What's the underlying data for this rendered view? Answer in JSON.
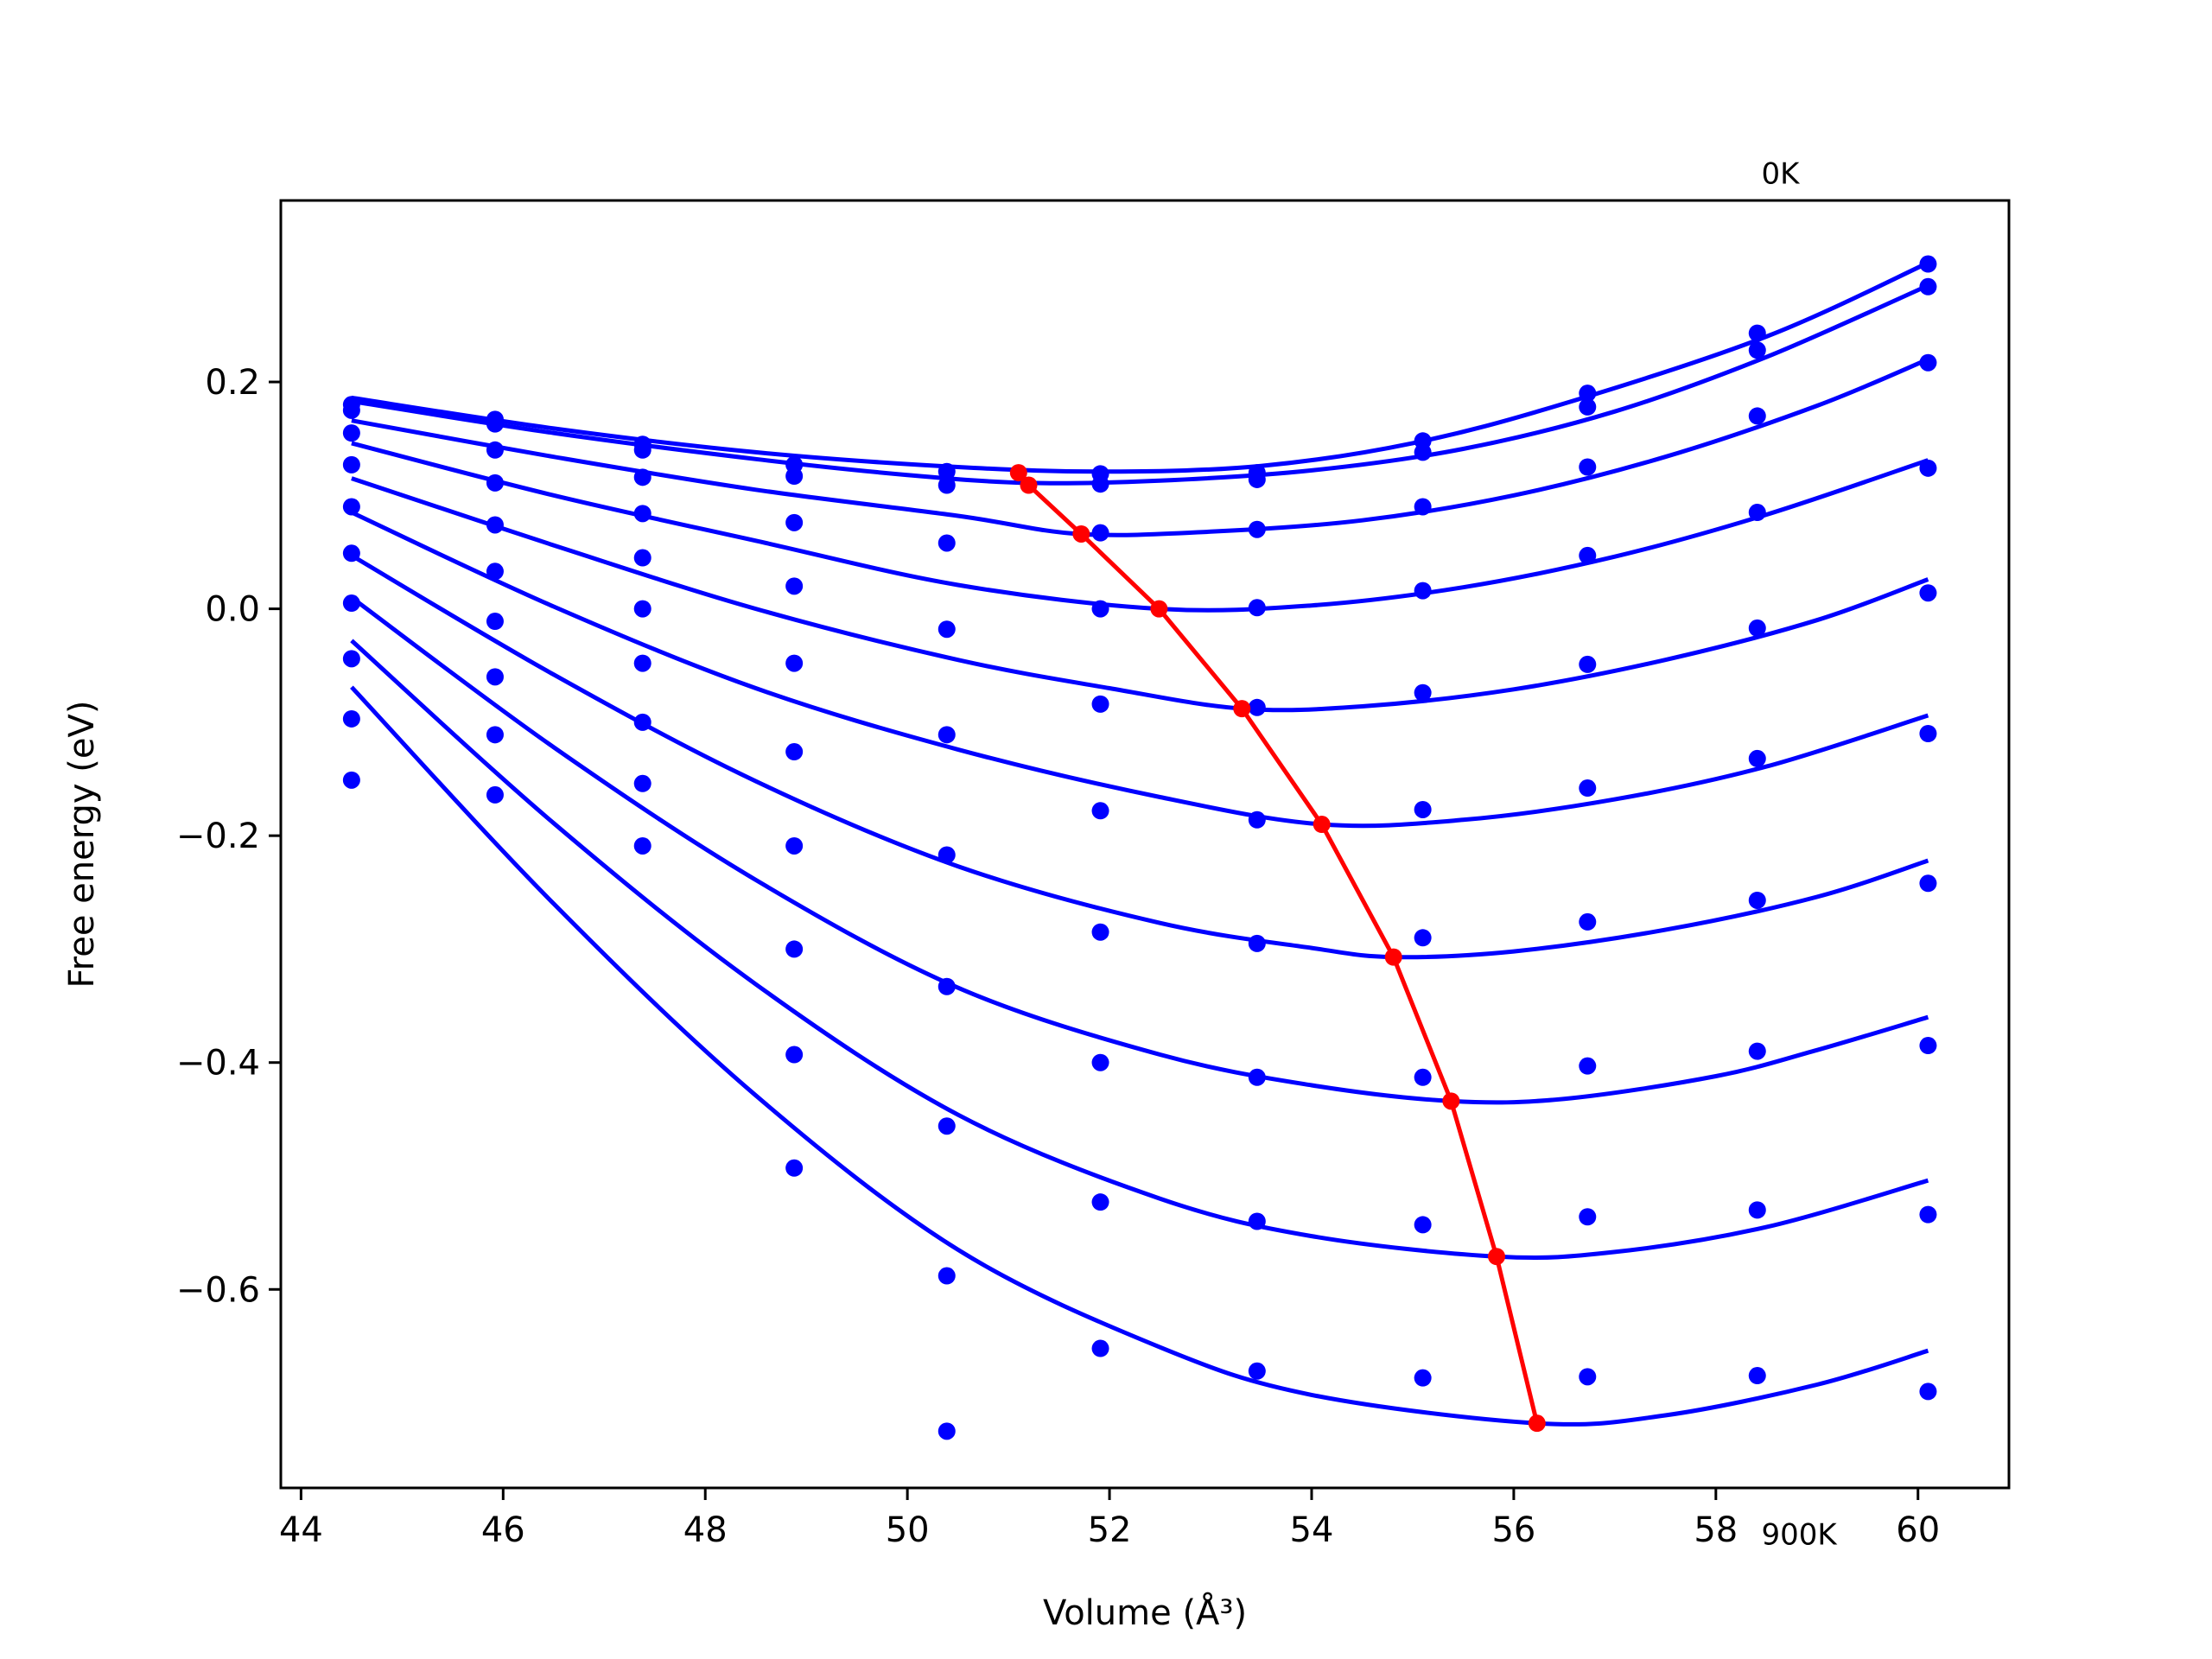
{
  "chart_data": {
    "type": "scatter",
    "xlabel": "Volume (Å³)",
    "ylabel": "Free energy (eV)",
    "xlim": [
      43.8,
      60.9
    ],
    "ylim": [
      -0.775,
      0.36
    ],
    "xticks": [
      44,
      46,
      48,
      50,
      52,
      54,
      56,
      58,
      60
    ],
    "yticks": [
      -0.6,
      -0.4,
      -0.2,
      0.0,
      0.2
    ],
    "xtick_labels": [
      "44",
      "46",
      "48",
      "50",
      "52",
      "54",
      "56",
      "58",
      "60"
    ],
    "ytick_labels": [
      "−0.6",
      "−0.4",
      "−0.2",
      "0.0",
      "0.2"
    ],
    "annotations": [
      {
        "text": "0K",
        "x": 58.45,
        "y": 0.375
      },
      {
        "text": "900K",
        "x": 58.45,
        "y": -0.825
      }
    ],
    "colors": {
      "points": "#0000ff",
      "fits": "#0000ff",
      "minima": "#ff0000"
    },
    "volumes": [
      44.5,
      45.92,
      47.38,
      48.88,
      50.39,
      51.91,
      53.46,
      55.1,
      56.73,
      58.41,
      60.1
    ],
    "series": [
      {
        "points": [
          0.18,
          0.167,
          0.145,
          0.127,
          0.121,
          0.119,
          0.12,
          0.148,
          0.19,
          0.243,
          0.304
        ],
        "fit": [
          [
            44.5,
            0.186
          ],
          [
            46.5,
            0.159
          ],
          [
            48.5,
            0.138
          ],
          [
            50.5,
            0.125
          ],
          [
            52.0,
            0.121
          ],
          [
            53.5,
            0.126
          ],
          [
            55.0,
            0.146
          ],
          [
            56.5,
            0.181
          ],
          [
            58.5,
            0.24
          ],
          [
            60.1,
            0.305
          ]
        ]
      },
      {
        "points": [
          0.175,
          0.163,
          0.14,
          0.117,
          0.109,
          0.11,
          0.114,
          0.138,
          0.178,
          0.228,
          0.284
        ],
        "fit": [
          [
            44.5,
            0.183
          ],
          [
            46.5,
            0.155
          ],
          [
            48.5,
            0.132
          ],
          [
            50.0,
            0.118
          ],
          [
            51.2,
            0.111
          ],
          [
            52.5,
            0.113
          ],
          [
            54.0,
            0.122
          ],
          [
            55.5,
            0.141
          ],
          [
            57.0,
            0.174
          ],
          [
            58.5,
            0.222
          ],
          [
            60.1,
            0.285
          ]
        ]
      },
      {
        "points": [
          0.155,
          0.14,
          0.116,
          0.076,
          0.058,
          0.067,
          0.07,
          0.09,
          0.125,
          0.17,
          0.217
        ],
        "fit": [
          [
            44.5,
            0.166
          ],
          [
            46.5,
            0.134
          ],
          [
            48.5,
            0.105
          ],
          [
            50.5,
            0.082
          ],
          [
            51.7,
            0.066
          ],
          [
            53.0,
            0.068
          ],
          [
            54.5,
            0.078
          ],
          [
            56.0,
            0.1
          ],
          [
            57.5,
            0.134
          ],
          [
            59.0,
            0.179
          ],
          [
            60.1,
            0.22
          ]
        ]
      },
      {
        "points": [
          0.127,
          0.111,
          0.084,
          0.02,
          -0.018,
          0.0,
          0.001,
          0.016,
          0.047,
          0.085,
          0.124
        ],
        "fit": [
          [
            44.5,
            0.146
          ],
          [
            46.5,
            0.1
          ],
          [
            48.5,
            0.06
          ],
          [
            50.5,
            0.021
          ],
          [
            52.49,
            0.0
          ],
          [
            54.0,
            0.003
          ],
          [
            55.5,
            0.019
          ],
          [
            57.0,
            0.046
          ],
          [
            58.5,
            0.083
          ],
          [
            60.1,
            0.131
          ]
        ]
      },
      {
        "points": [
          0.09,
          0.074,
          0.045,
          -0.048,
          -0.111,
          -0.084,
          -0.087,
          -0.074,
          -0.049,
          -0.017,
          0.014
        ],
        "fit": [
          [
            44.5,
            0.115
          ],
          [
            46.5,
            0.056
          ],
          [
            48.5,
            0.0
          ],
          [
            50.5,
            -0.045
          ],
          [
            52.0,
            -0.07
          ],
          [
            53.31,
            -0.088
          ],
          [
            54.5,
            -0.086
          ],
          [
            56.0,
            -0.071
          ],
          [
            57.5,
            -0.045
          ],
          [
            59.0,
            -0.01
          ],
          [
            60.1,
            0.026
          ]
        ]
      },
      {
        "points": [
          0.049,
          0.033,
          0.0,
          -0.126,
          -0.217,
          -0.178,
          -0.186,
          -0.177,
          -0.158,
          -0.132,
          -0.11
        ],
        "fit": [
          [
            44.5,
            0.085
          ],
          [
            46.5,
            0.002
          ],
          [
            48.5,
            -0.07
          ],
          [
            50.5,
            -0.124
          ],
          [
            52.5,
            -0.166
          ],
          [
            54.1,
            -0.19
          ],
          [
            55.5,
            -0.186
          ],
          [
            57.0,
            -0.168
          ],
          [
            58.5,
            -0.139
          ],
          [
            60.1,
            -0.094
          ]
        ]
      },
      {
        "points": [
          0.005,
          -0.011,
          -0.048,
          -0.209,
          -0.333,
          -0.285,
          -0.295,
          -0.29,
          -0.276,
          -0.257,
          -0.242
        ],
        "fit": [
          [
            44.5,
            0.047
          ],
          [
            46.5,
            -0.058
          ],
          [
            48.5,
            -0.152
          ],
          [
            50.5,
            -0.227
          ],
          [
            52.5,
            -0.277
          ],
          [
            54.0,
            -0.299
          ],
          [
            54.81,
            -0.307
          ],
          [
            56.0,
            -0.302
          ],
          [
            57.5,
            -0.283
          ],
          [
            59.0,
            -0.254
          ],
          [
            60.1,
            -0.222
          ]
        ]
      },
      {
        "points": [
          -0.044,
          -0.06,
          -0.1,
          -0.3,
          -0.456,
          -0.4,
          -0.413,
          -0.413,
          -0.403,
          -0.39,
          -0.385
        ],
        "fit": [
          [
            44.5,
            0.01
          ],
          [
            46.5,
            -0.122
          ],
          [
            48.5,
            -0.239
          ],
          [
            50.5,
            -0.334
          ],
          [
            52.5,
            -0.393
          ],
          [
            54.0,
            -0.42
          ],
          [
            55.38,
            -0.434
          ],
          [
            56.5,
            -0.432
          ],
          [
            58.0,
            -0.412
          ],
          [
            59.0,
            -0.389
          ],
          [
            60.1,
            -0.36
          ]
        ]
      },
      {
        "points": [
          -0.097,
          -0.111,
          -0.154,
          -0.393,
          -0.588,
          -0.523,
          -0.54,
          -0.543,
          -0.536,
          -0.53,
          -0.534
        ],
        "fit": [
          [
            44.5,
            -0.028
          ],
          [
            46.5,
            -0.189
          ],
          [
            48.5,
            -0.331
          ],
          [
            50.5,
            -0.446
          ],
          [
            52.5,
            -0.52
          ],
          [
            54.0,
            -0.553
          ],
          [
            55.83,
            -0.571
          ],
          [
            57.0,
            -0.567
          ],
          [
            58.5,
            -0.545
          ],
          [
            60.1,
            -0.504
          ]
        ]
      },
      {
        "points": [
          -0.151,
          -0.164,
          -0.209,
          -0.493,
          -0.725,
          -0.652,
          -0.672,
          -0.678,
          -0.677,
          -0.676,
          -0.69
        ],
        "fit": [
          [
            44.5,
            -0.069
          ],
          [
            46.5,
            -0.26
          ],
          [
            48.5,
            -0.429
          ],
          [
            50.5,
            -0.565
          ],
          [
            52.5,
            -0.651
          ],
          [
            54.0,
            -0.693
          ],
          [
            56.23,
            -0.718
          ],
          [
            57.5,
            -0.711
          ],
          [
            59.0,
            -0.684
          ],
          [
            60.1,
            -0.654
          ]
        ]
      }
    ],
    "minima_path": {
      "x": [
        51.1,
        51.2,
        51.72,
        52.49,
        53.31,
        54.1,
        54.81,
        55.38,
        55.83,
        56.23
      ],
      "y": [
        0.12,
        0.109,
        0.066,
        0.0,
        -0.088,
        -0.19,
        -0.307,
        -0.434,
        -0.571,
        -0.718
      ]
    }
  }
}
